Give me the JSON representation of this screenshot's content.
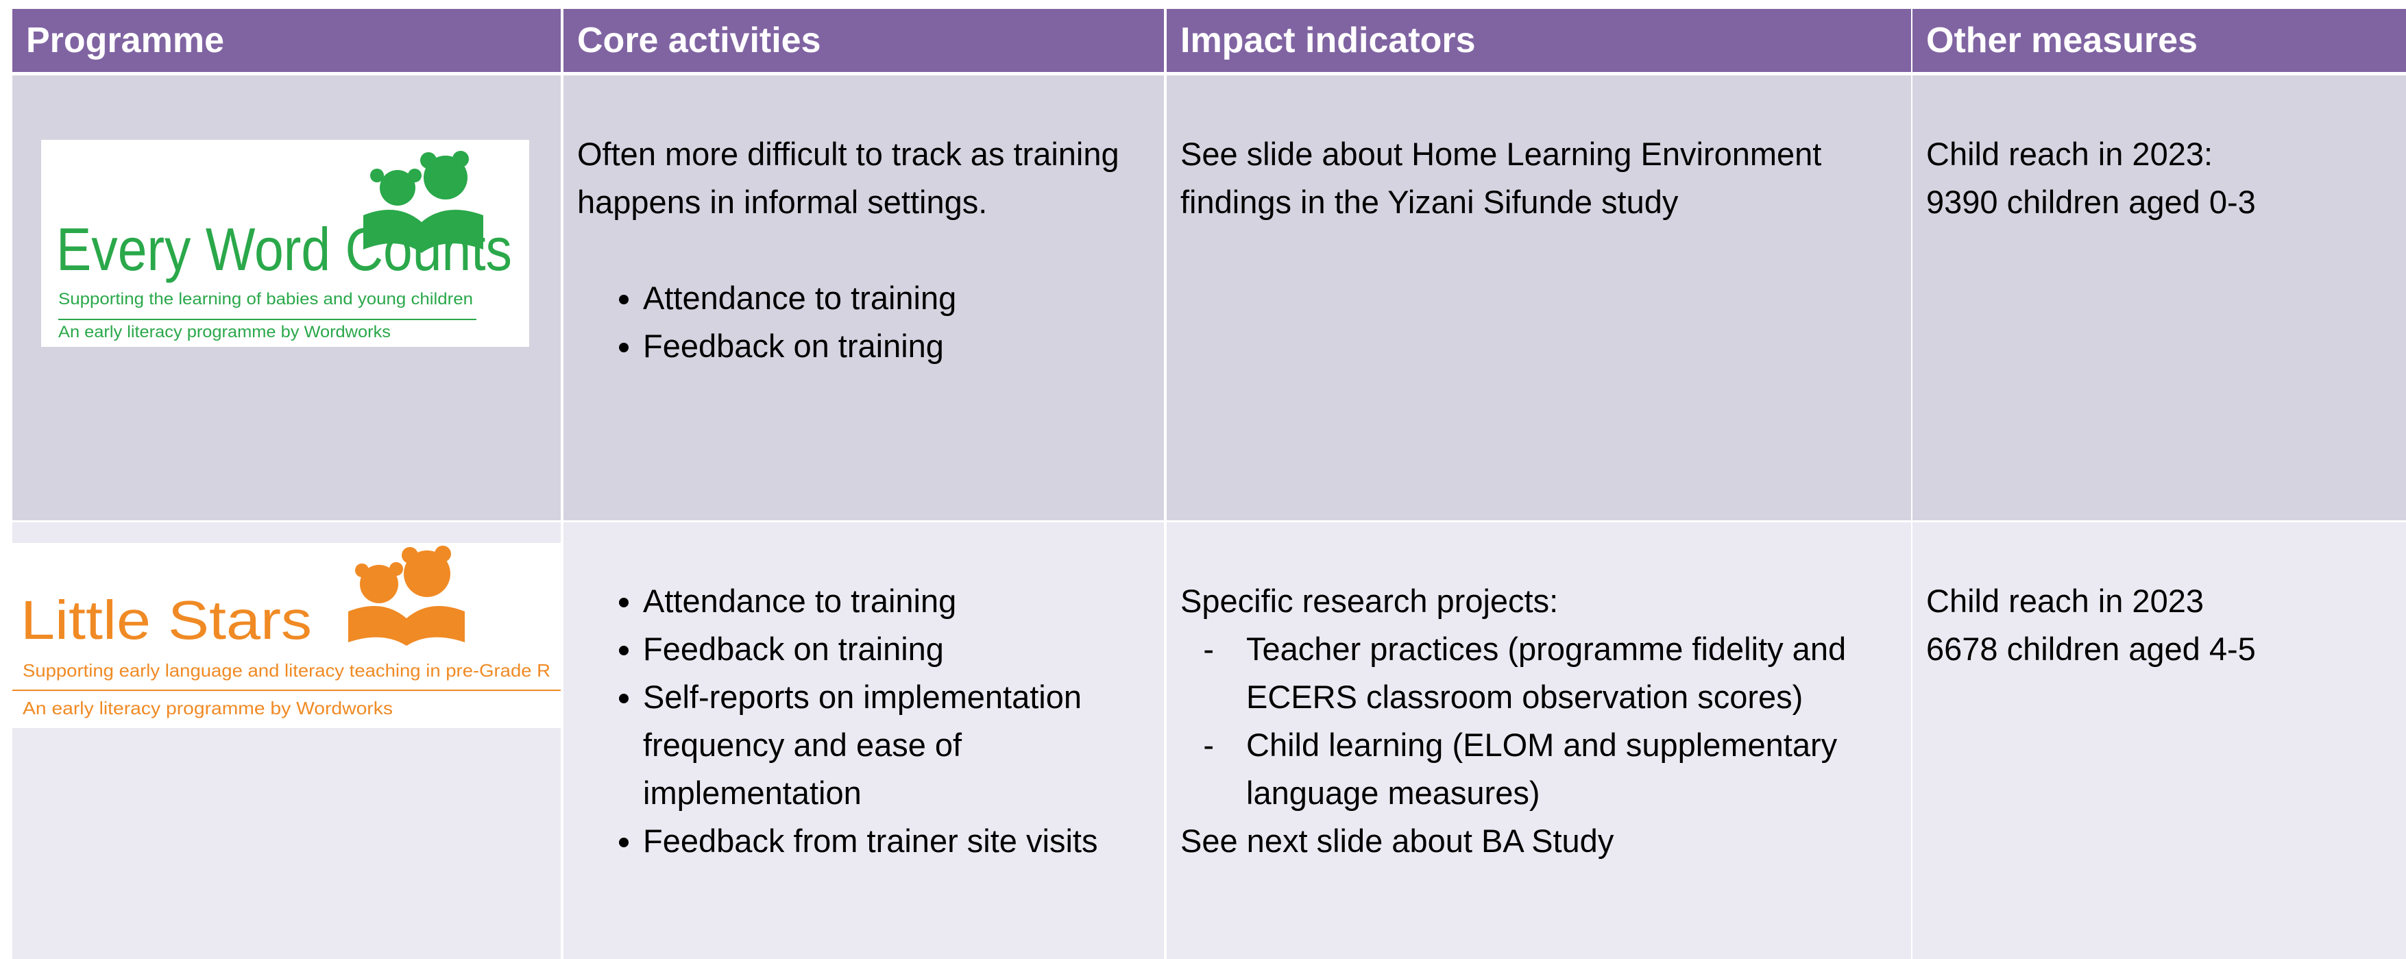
{
  "table": {
    "header": [
      "Programme",
      "Core activities",
      "Impact indicators",
      "Other measures"
    ],
    "rows": [
      {
        "logo": {
          "title": "Every Word Counts",
          "tagline": "Supporting the learning of babies and young children",
          "byline": "An early literacy programme by Wordworks"
        },
        "core": {
          "intro": "Often more difficult to track as training happens in informal settings.",
          "bullets": [
            "Attendance to training",
            "Feedback on training"
          ]
        },
        "impact": {
          "intro": "See slide about Home Learning Environment findings in the Yizani Sifunde study"
        },
        "other": [
          "Child reach in 2023:",
          "9390 children aged 0-3"
        ]
      },
      {
        "logo": {
          "title": "Little Stars",
          "tagline": "Supporting early language and literacy teaching in pre-Grade R",
          "byline": "An early literacy programme by Wordworks"
        },
        "core": {
          "bullets": [
            "Attendance to training",
            "Feedback on training",
            "Self-reports on implementation frequency and ease of implementation",
            "Feedback from trainer site visits"
          ]
        },
        "impact": {
          "intro": "Specific research projects:",
          "bullets": [
            "Teacher practices (programme fidelity and ECERS classroom observation scores)",
            "Child learning (ELOM and supplementary language measures)"
          ],
          "outro": "See next slide about BA Study"
        },
        "other": [
          "Child reach in 2023",
          "6678 children aged 4-5"
        ]
      }
    ]
  }
}
